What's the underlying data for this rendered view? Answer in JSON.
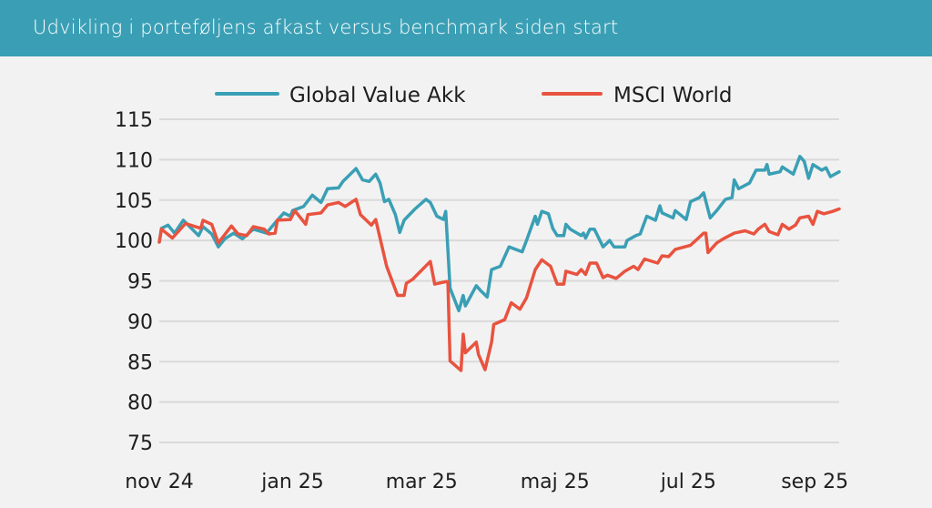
{
  "header": {
    "title": "Udvikling i porteføljens afkast versus benchmark siden start"
  },
  "colors": {
    "header": "#3a9fb5",
    "series_teal": "#3a9fb5",
    "series_red": "#e8533f",
    "grid": "#d9d9d9"
  },
  "chart_data": {
    "type": "line",
    "title": "Udvikling i porteføljens afkast versus benchmark siden start",
    "xlabel": "",
    "ylabel": "",
    "x_unit": "days since 2024-11-01",
    "xlim": [
      0,
      311
    ],
    "ylim": [
      75,
      115
    ],
    "yticks": [
      75,
      80,
      85,
      90,
      95,
      100,
      105,
      110,
      115
    ],
    "xticks": [
      {
        "x": 0,
        "label": "nov 24"
      },
      {
        "x": 61,
        "label": "jan 25"
      },
      {
        "x": 120,
        "label": "mar 25"
      },
      {
        "x": 181,
        "label": "maj 25"
      },
      {
        "x": 242,
        "label": "jul 25"
      },
      {
        "x": 304,
        "label": "sep 25"
      }
    ],
    "grid": true,
    "legend_position": "top-center",
    "series": [
      {
        "name": "Global Value Akk",
        "color": "#3a9fb5",
        "points": [
          [
            0,
            99.8
          ],
          [
            1,
            101.5
          ],
          [
            4,
            101.9
          ],
          [
            7,
            100.9
          ],
          [
            11,
            102.5
          ],
          [
            18,
            100.6
          ],
          [
            20,
            101.7
          ],
          [
            24,
            100.8
          ],
          [
            27,
            99.2
          ],
          [
            30,
            100.2
          ],
          [
            34,
            100.9
          ],
          [
            38,
            100.2
          ],
          [
            43,
            101.4
          ],
          [
            49,
            100.9
          ],
          [
            54,
            102.5
          ],
          [
            57,
            103.4
          ],
          [
            60,
            103.0
          ],
          [
            61,
            103.7
          ],
          [
            66,
            104.2
          ],
          [
            70,
            105.6
          ],
          [
            74,
            104.7
          ],
          [
            77,
            106.4
          ],
          [
            82,
            106.5
          ],
          [
            84,
            107.3
          ],
          [
            90,
            108.9
          ],
          [
            93,
            107.5
          ],
          [
            96,
            107.3
          ],
          [
            99,
            108.2
          ],
          [
            101,
            107.1
          ],
          [
            103,
            104.8
          ],
          [
            105,
            105.1
          ],
          [
            108,
            103.2
          ],
          [
            110,
            101.0
          ],
          [
            112,
            102.5
          ],
          [
            117,
            103.9
          ],
          [
            122,
            105.1
          ],
          [
            124,
            104.7
          ],
          [
            127,
            103.0
          ],
          [
            130,
            102.6
          ],
          [
            131,
            103.6
          ],
          [
            133,
            94.1
          ],
          [
            137,
            91.3
          ],
          [
            139,
            93.2
          ],
          [
            140,
            91.9
          ],
          [
            145,
            94.4
          ],
          [
            147,
            93.8
          ],
          [
            150,
            93.0
          ],
          [
            152,
            96.4
          ],
          [
            156,
            96.8
          ],
          [
            160,
            99.2
          ],
          [
            166,
            98.6
          ],
          [
            168,
            100.0
          ],
          [
            172,
            103.0
          ],
          [
            173,
            102.0
          ],
          [
            175,
            103.6
          ],
          [
            178,
            103.3
          ],
          [
            180,
            101.5
          ],
          [
            182,
            100.6
          ],
          [
            185,
            100.6
          ],
          [
            186,
            102.0
          ],
          [
            188,
            101.4
          ],
          [
            193,
            100.6
          ],
          [
            194,
            100.9
          ],
          [
            195,
            100.3
          ],
          [
            197,
            101.4
          ],
          [
            199,
            101.4
          ],
          [
            203,
            99.2
          ],
          [
            206,
            100.0
          ],
          [
            208,
            99.2
          ],
          [
            213,
            99.2
          ],
          [
            214,
            100.0
          ],
          [
            218,
            100.6
          ],
          [
            220,
            100.8
          ],
          [
            223,
            103.0
          ],
          [
            227,
            102.5
          ],
          [
            229,
            104.3
          ],
          [
            230,
            103.4
          ],
          [
            235,
            102.8
          ],
          [
            236,
            103.7
          ],
          [
            241,
            102.6
          ],
          [
            243,
            104.8
          ],
          [
            247,
            105.3
          ],
          [
            249,
            105.9
          ],
          [
            252,
            102.8
          ],
          [
            255,
            103.7
          ],
          [
            259,
            105.1
          ],
          [
            262,
            105.3
          ],
          [
            263,
            107.5
          ],
          [
            265,
            106.4
          ],
          [
            270,
            107.1
          ],
          [
            273,
            108.7
          ],
          [
            277,
            108.7
          ],
          [
            278,
            109.4
          ],
          [
            279,
            108.2
          ],
          [
            284,
            108.5
          ],
          [
            285,
            109.1
          ],
          [
            290,
            108.2
          ],
          [
            293,
            110.4
          ],
          [
            295,
            109.8
          ],
          [
            297,
            107.7
          ],
          [
            299,
            109.4
          ],
          [
            303,
            108.7
          ],
          [
            305,
            109.0
          ],
          [
            307,
            107.9
          ],
          [
            311,
            108.5
          ]
        ]
      },
      {
        "name": "MSCI World",
        "color": "#e8533f",
        "points": [
          [
            0,
            99.8
          ],
          [
            1,
            101.4
          ],
          [
            6,
            100.3
          ],
          [
            12,
            102.1
          ],
          [
            19,
            101.5
          ],
          [
            20,
            102.5
          ],
          [
            24,
            102.0
          ],
          [
            27,
            99.7
          ],
          [
            33,
            101.8
          ],
          [
            36,
            100.8
          ],
          [
            40,
            100.6
          ],
          [
            43,
            101.7
          ],
          [
            48,
            101.4
          ],
          [
            50,
            100.8
          ],
          [
            53,
            100.9
          ],
          [
            54,
            102.5
          ],
          [
            60,
            102.6
          ],
          [
            62,
            103.7
          ],
          [
            67,
            102.0
          ],
          [
            68,
            103.2
          ],
          [
            74,
            103.4
          ],
          [
            77,
            104.4
          ],
          [
            82,
            104.7
          ],
          [
            85,
            104.2
          ],
          [
            90,
            105.1
          ],
          [
            92,
            103.2
          ],
          [
            97,
            101.9
          ],
          [
            99,
            102.6
          ],
          [
            104,
            96.8
          ],
          [
            109,
            93.2
          ],
          [
            112,
            93.2
          ],
          [
            113,
            94.7
          ],
          [
            116,
            95.2
          ],
          [
            117,
            95.5
          ],
          [
            124,
            97.4
          ],
          [
            126,
            94.6
          ],
          [
            131,
            94.9
          ],
          [
            132,
            94.9
          ],
          [
            133,
            85.1
          ],
          [
            138,
            83.9
          ],
          [
            139,
            88.4
          ],
          [
            140,
            86.1
          ],
          [
            145,
            87.4
          ],
          [
            146,
            85.9
          ],
          [
            149,
            84.0
          ],
          [
            152,
            87.4
          ],
          [
            153,
            89.6
          ],
          [
            158,
            90.2
          ],
          [
            161,
            92.3
          ],
          [
            165,
            91.5
          ],
          [
            168,
            92.9
          ],
          [
            172,
            96.4
          ],
          [
            175,
            97.6
          ],
          [
            179,
            96.8
          ],
          [
            182,
            94.6
          ],
          [
            185,
            94.6
          ],
          [
            186,
            96.2
          ],
          [
            191,
            95.8
          ],
          [
            193,
            96.4
          ],
          [
            195,
            95.8
          ],
          [
            197,
            97.2
          ],
          [
            200,
            97.2
          ],
          [
            203,
            95.4
          ],
          [
            205,
            95.7
          ],
          [
            209,
            95.3
          ],
          [
            213,
            96.2
          ],
          [
            217,
            96.8
          ],
          [
            219,
            96.4
          ],
          [
            222,
            97.7
          ],
          [
            228,
            97.2
          ],
          [
            230,
            98.1
          ],
          [
            233,
            98.0
          ],
          [
            236,
            98.9
          ],
          [
            243,
            99.4
          ],
          [
            249,
            100.9
          ],
          [
            250,
            100.9
          ],
          [
            251,
            98.5
          ],
          [
            255,
            99.7
          ],
          [
            258,
            100.2
          ],
          [
            263,
            100.9
          ],
          [
            268,
            101.2
          ],
          [
            272,
            100.8
          ],
          [
            274,
            101.4
          ],
          [
            277,
            102.0
          ],
          [
            279,
            101.1
          ],
          [
            283,
            100.7
          ],
          [
            285,
            102.0
          ],
          [
            288,
            101.4
          ],
          [
            291,
            101.9
          ],
          [
            293,
            102.8
          ],
          [
            297,
            103.0
          ],
          [
            299,
            102.0
          ],
          [
            301,
            103.6
          ],
          [
            304,
            103.3
          ],
          [
            308,
            103.6
          ],
          [
            311,
            103.9
          ]
        ]
      }
    ]
  }
}
